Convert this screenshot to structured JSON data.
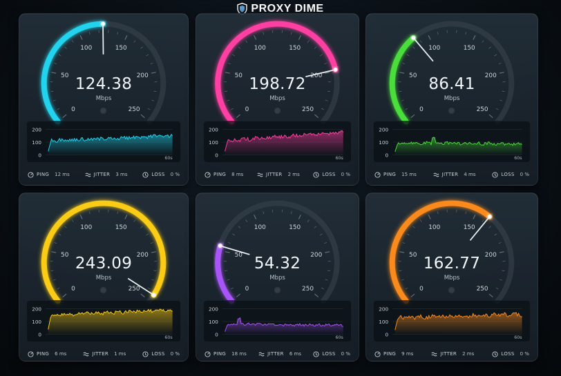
{
  "header": {
    "brand": "PROXY DIME"
  },
  "colors": {
    "track": "#3a454e",
    "panel_bg": "#0a1016"
  },
  "gauge_scale": {
    "min": 0,
    "max": 250,
    "labels": [
      "0",
      "50",
      "100",
      "150",
      "200",
      "250"
    ]
  },
  "stat_labels": {
    "ping": "PING",
    "jitter": "JITTER",
    "loss": "LOSS"
  },
  "cards": [
    {
      "speed": "124.38",
      "unit": "Mbps",
      "value": 124.38,
      "color": "#22d3ee",
      "ping": "12 ms",
      "jitter": "3 ms",
      "loss": "0 %",
      "chart": {
        "y_ticks": [
          "200",
          "100",
          "0"
        ],
        "x_label": "60s",
        "base": 110,
        "trend": 40,
        "noise": 14,
        "spike": null
      }
    },
    {
      "speed": "198.72",
      "unit": "Mbps",
      "value": 198.72,
      "color": "#ff3fa2",
      "ping": "8 ms",
      "jitter": "2 ms",
      "loss": "0 %",
      "chart": {
        "y_ticks": [
          "200",
          "100",
          "0"
        ],
        "x_label": "60s",
        "base": 110,
        "trend": 70,
        "noise": 14,
        "spike": null
      }
    },
    {
      "speed": "86.41",
      "unit": "Mbps",
      "value": 86.41,
      "color": "#4ade3a",
      "ping": "15 ms",
      "jitter": "4 ms",
      "loss": "0 %",
      "chart": {
        "y_ticks": [
          "200",
          "100",
          "0"
        ],
        "x_label": "60s",
        "base": 95,
        "trend": -10,
        "noise": 11,
        "spike": 0.3
      }
    },
    {
      "speed": "243.09",
      "unit": "Mbps",
      "value": 243.09,
      "color": "#facc15",
      "ping": "6 ms",
      "jitter": "1 ms",
      "loss": "0 %",
      "chart": {
        "y_ticks": [
          "200",
          "100",
          "0"
        ],
        "x_label": "60s",
        "base": 150,
        "trend": 40,
        "noise": 13,
        "spike": null
      }
    },
    {
      "speed": "54.32",
      "unit": "Mbps",
      "value": 54.32,
      "color": "#a855f7",
      "ping": "18 ms",
      "jitter": "6 ms",
      "loss": "0 %",
      "chart": {
        "y_ticks": [
          "200",
          "100",
          "0"
        ],
        "x_label": "60s",
        "base": 80,
        "trend": -10,
        "noise": 9,
        "spike": 0.12
      }
    },
    {
      "speed": "162.77",
      "unit": "Mbps",
      "value": 162.77,
      "color": "#fb8a1e",
      "ping": "9 ms",
      "jitter": "2 ms",
      "loss": "0 %",
      "chart": {
        "y_ticks": [
          "200",
          "100",
          "0"
        ],
        "x_label": "60s",
        "base": 130,
        "trend": 25,
        "noise": 15,
        "spike": null
      }
    }
  ]
}
